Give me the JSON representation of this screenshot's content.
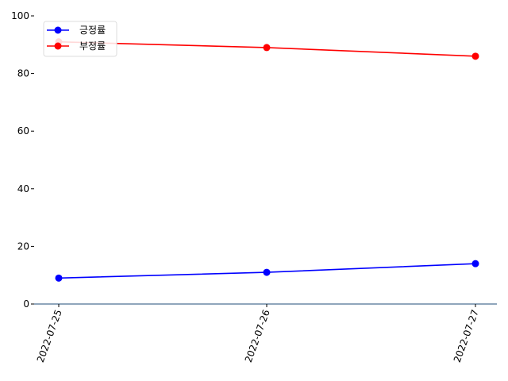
{
  "chart_data": {
    "type": "line",
    "title": "",
    "xlabel": "",
    "ylabel": "",
    "categories": [
      "2022-07-25",
      "2022-07-26",
      "2022-07-27"
    ],
    "ylim": [
      0,
      100
    ],
    "yticks": [
      0,
      20,
      40,
      60,
      80,
      100
    ],
    "grid": false,
    "legend_position": "top-left",
    "axis_color": "#1f4e79",
    "series": [
      {
        "name": "긍정률",
        "color": "#0000ff",
        "values": [
          9,
          11,
          14
        ]
      },
      {
        "name": "부정률",
        "color": "#ff0000",
        "values": [
          91,
          89,
          86
        ]
      }
    ]
  }
}
